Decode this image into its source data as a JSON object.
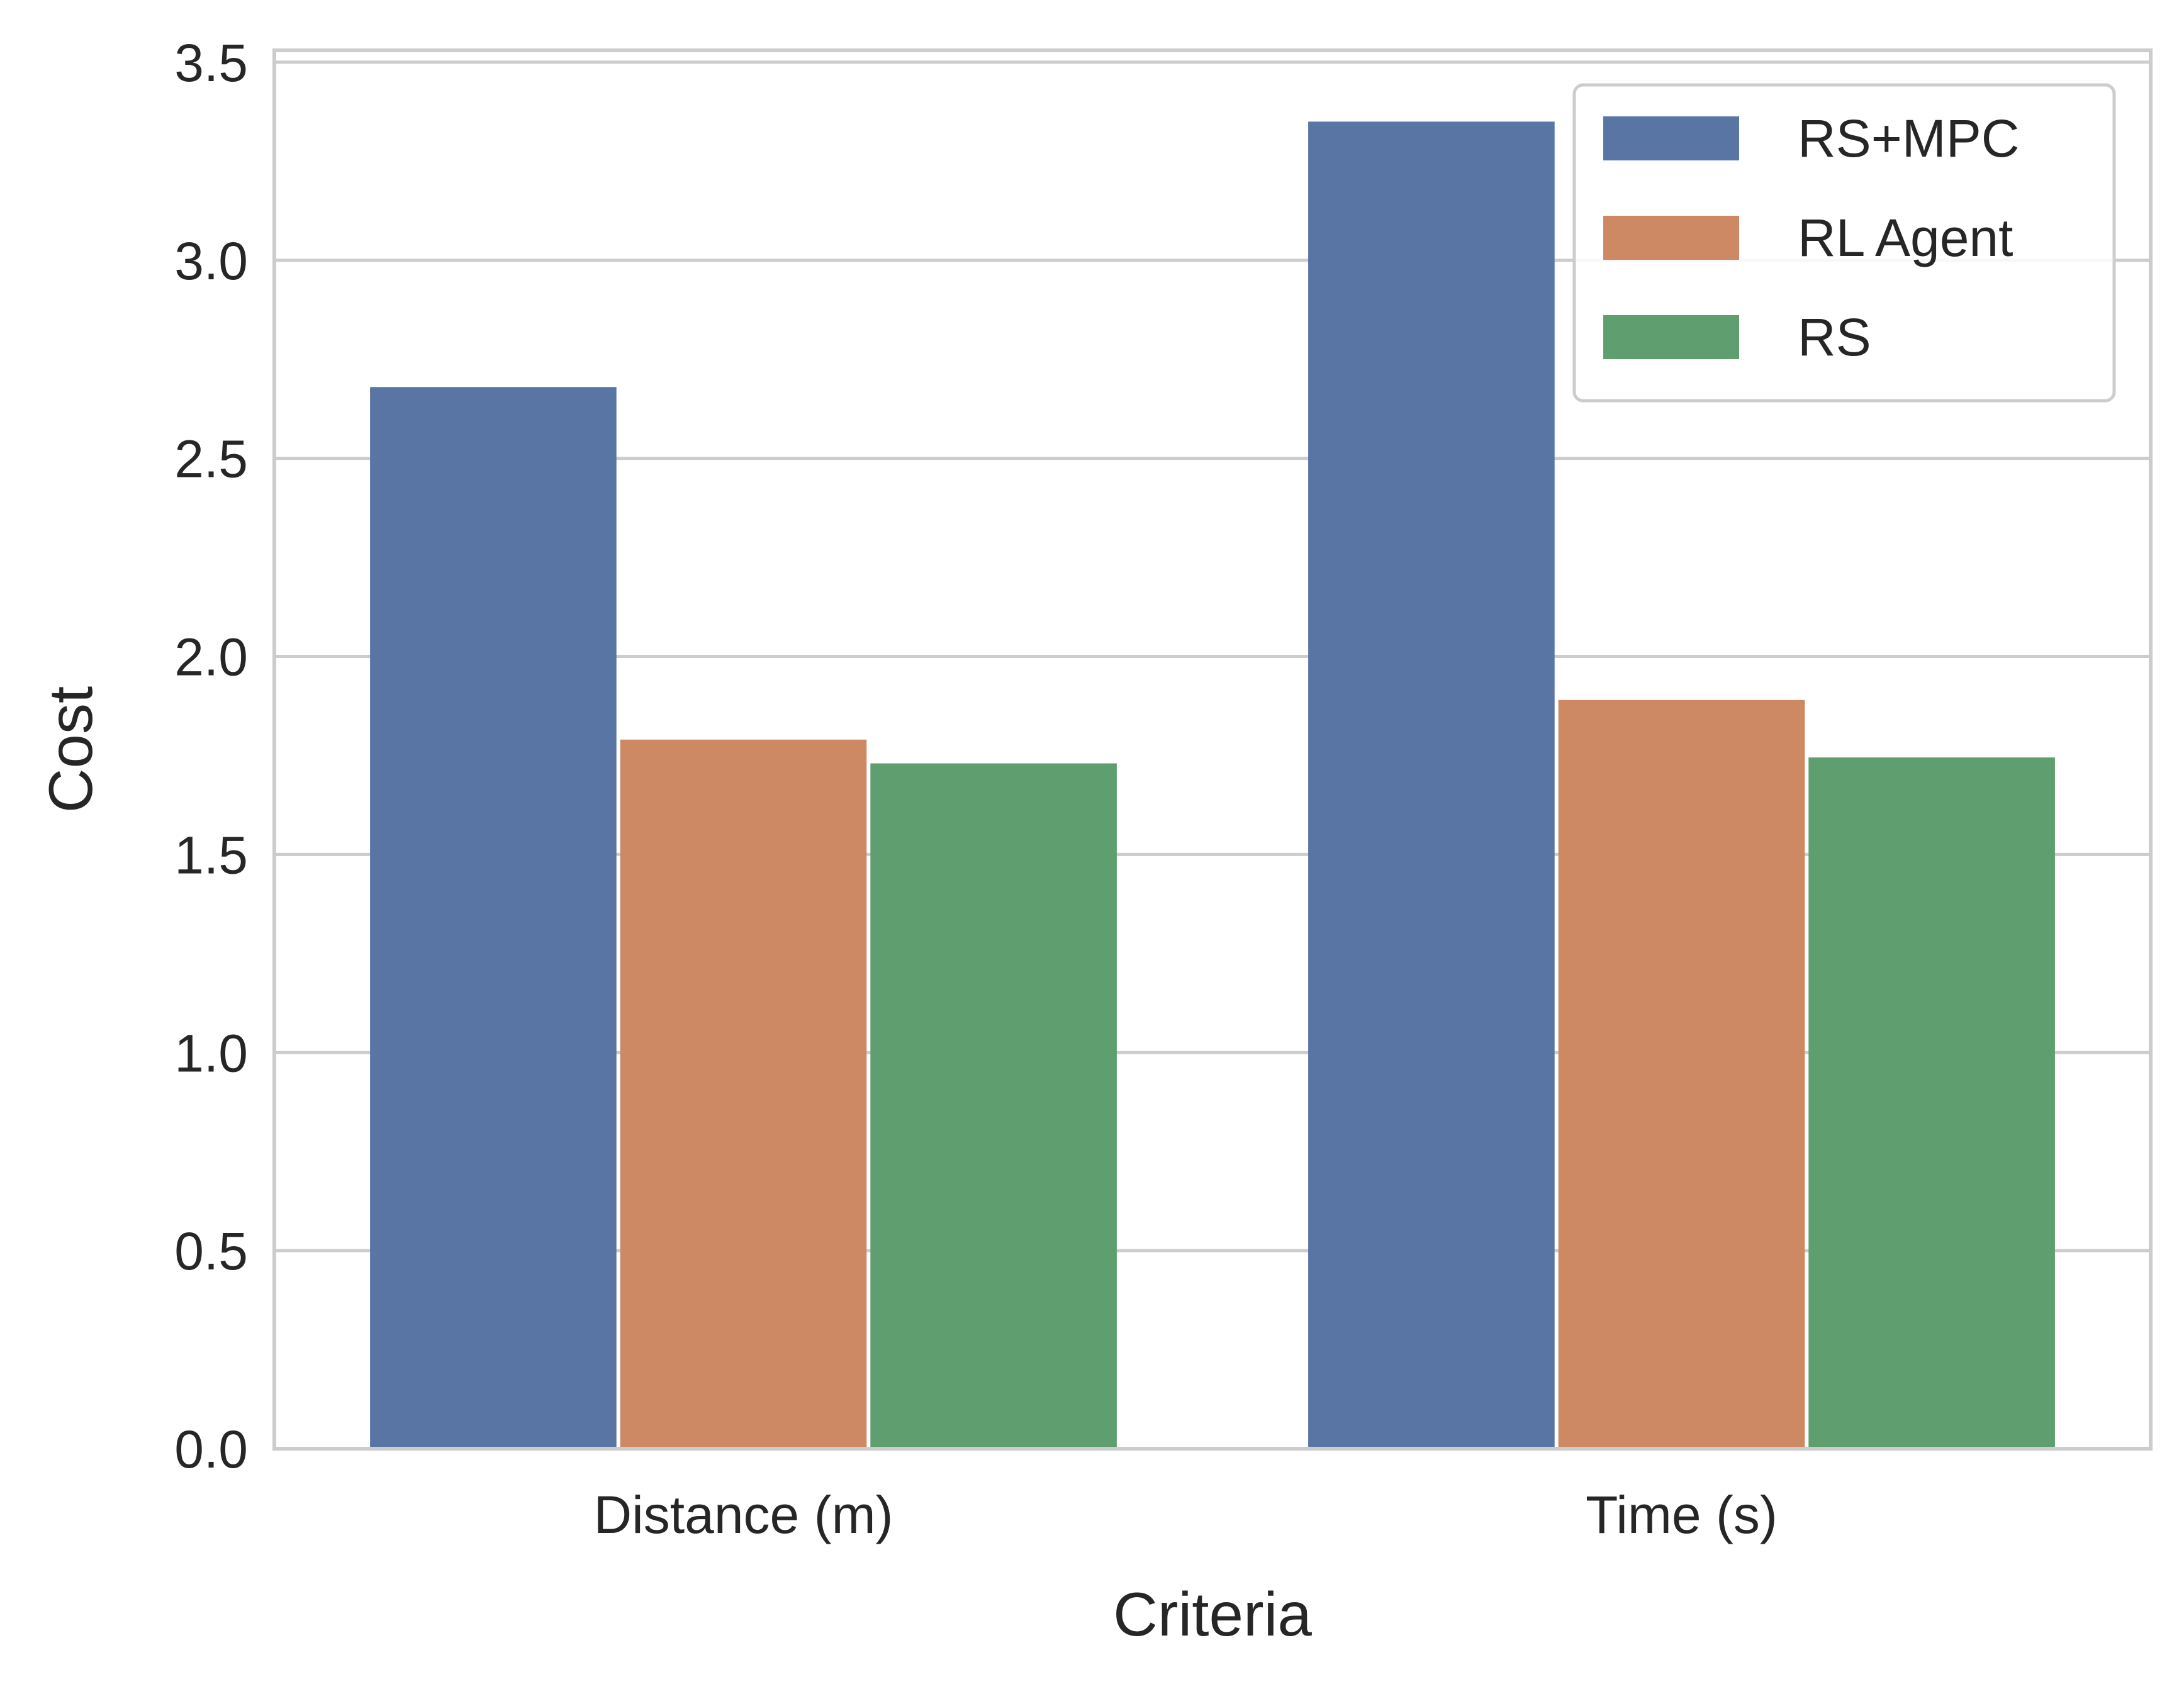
{
  "chart_data": {
    "type": "bar",
    "categories": [
      "Distance (m)",
      "Time (s)"
    ],
    "series": [
      {
        "name": "RS+MPC",
        "values": [
          2.68,
          3.35
        ],
        "color": "#5975a4"
      },
      {
        "name": "RL Agent",
        "values": [
          1.79,
          1.89
        ],
        "color": "#cc8963"
      },
      {
        "name": "RS",
        "values": [
          1.73,
          1.745
        ],
        "color": "#5f9e6e"
      }
    ],
    "title": "",
    "xlabel": "Criteria",
    "ylabel": "Cost",
    "ylim": [
      0,
      3.53
    ],
    "yticks": [
      "0.0",
      "0.5",
      "1.0",
      "1.5",
      "2.0",
      "2.5",
      "3.0",
      "3.5"
    ],
    "grid": "horizontal",
    "legend_position": "top-right"
  }
}
